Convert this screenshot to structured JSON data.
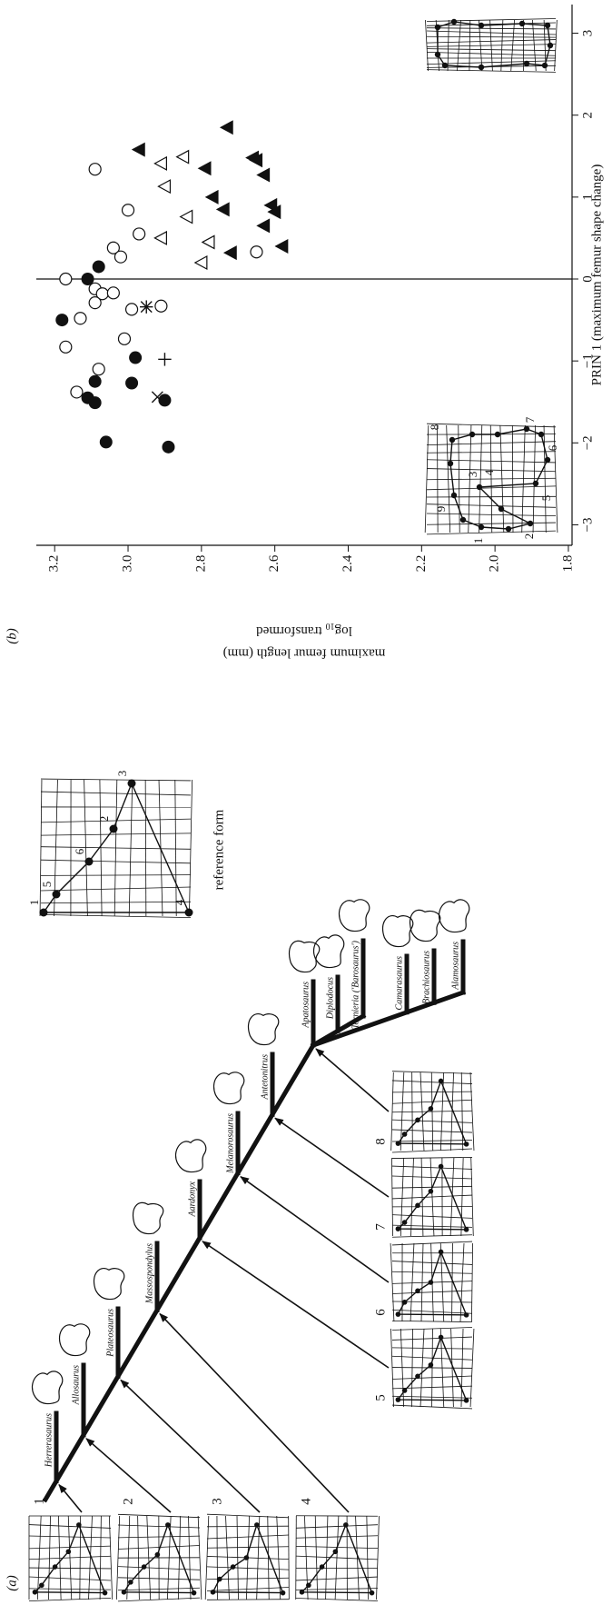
{
  "panel_labels": [
    "(a)",
    "(b)"
  ],
  "cladogram": {
    "taxa": [
      "Herrerasaurus",
      "Allosaurus",
      "Plateosaurus",
      "Massospondylus",
      "Aardonyx",
      "Melanorosaurus",
      "Antetonitrus",
      "Apatosaurus",
      "Diplodocus",
      "Tornieria ('Barosaurus')",
      "Camarasaurus",
      "Brachiosaurus",
      "Alamosaurus"
    ],
    "inset_labels": [
      "1",
      "2",
      "3",
      "4",
      "5",
      "6",
      "7",
      "8"
    ],
    "reference_form": {
      "title": "reference form",
      "landmarks": [
        "1",
        "2",
        "3",
        "4",
        "5",
        "6"
      ]
    }
  },
  "chart_data": {
    "type": "scatter",
    "xlabel": "PRIN 1 (maximum femur shape change)",
    "ylabel": {
      "line1": "maximum femur length (mm)",
      "line2": {
        "text": "log",
        "sub": "10",
        "rest": "transformed"
      }
    },
    "xlim": [
      -3.25,
      3.35
    ],
    "xticks": [
      {
        "value": -3,
        "label": "−3"
      },
      {
        "value": -2,
        "label": "−2"
      },
      {
        "value": -1,
        "label": "−1"
      },
      0,
      1,
      2,
      3
    ],
    "ylim": [
      1.79,
      3.25
    ],
    "yticks": [
      1.8,
      {
        "value": 2,
        "label": "2.0"
      },
      2.2,
      2.4,
      2.6,
      2.8,
      {
        "value": 3,
        "label": "3.0"
      },
      3.2
    ],
    "color": "#111111",
    "zero_line": true,
    "series": [
      {
        "marker": "open-circle",
        "x": [
          1.34,
          0.0,
          0.38,
          0.27,
          0.84,
          0.55,
          -0.12,
          -0.18,
          -0.17,
          -0.29,
          -0.48,
          -0.83,
          -0.73,
          -1.1,
          -1.38,
          -0.37,
          -0.33,
          0.33
        ],
        "values": [
          3.09,
          3.17,
          3.04,
          3.02,
          3.0,
          2.97,
          3.09,
          3.07,
          3.04,
          3.09,
          3.13,
          3.17,
          3.01,
          3.08,
          3.14,
          2.99,
          2.91,
          2.65
        ]
      },
      {
        "marker": "filled-circle",
        "x": [
          0.0,
          0.15,
          -0.5,
          -0.96,
          -1.25,
          -1.27,
          -1.45,
          -1.51,
          -1.99,
          -2.05,
          -1.48
        ],
        "values": [
          3.11,
          3.08,
          3.18,
          2.98,
          3.09,
          2.99,
          3.11,
          3.09,
          3.06,
          2.89,
          2.9
        ]
      },
      {
        "marker": "open-triangle",
        "x": [
          1.49,
          1.41,
          1.13,
          0.76,
          0.5,
          0.45,
          0.2
        ],
        "values": [
          2.85,
          2.91,
          2.9,
          2.84,
          2.91,
          2.78,
          2.8
        ]
      },
      {
        "marker": "filled-triangle",
        "x": [
          1.85,
          1.35,
          1.27,
          1.48,
          1.45,
          1.0,
          0.85,
          0.65,
          0.9,
          0.82,
          0.4,
          1.58,
          0.32
        ],
        "values": [
          2.73,
          2.79,
          2.63,
          2.66,
          2.65,
          2.77,
          2.74,
          2.63,
          2.61,
          2.6,
          2.58,
          2.97,
          2.72
        ]
      },
      {
        "marker": "cross",
        "x": [
          -1.44,
          -0.34
        ],
        "values": [
          2.92,
          2.95
        ]
      },
      {
        "marker": "plus",
        "x": [
          -0.98,
          -0.34
        ],
        "values": [
          2.9,
          2.95
        ]
      }
    ],
    "inset_landmark_labels": [
      "1",
      "2",
      "3",
      "4",
      "5",
      "6",
      "7",
      "8",
      "9"
    ]
  }
}
